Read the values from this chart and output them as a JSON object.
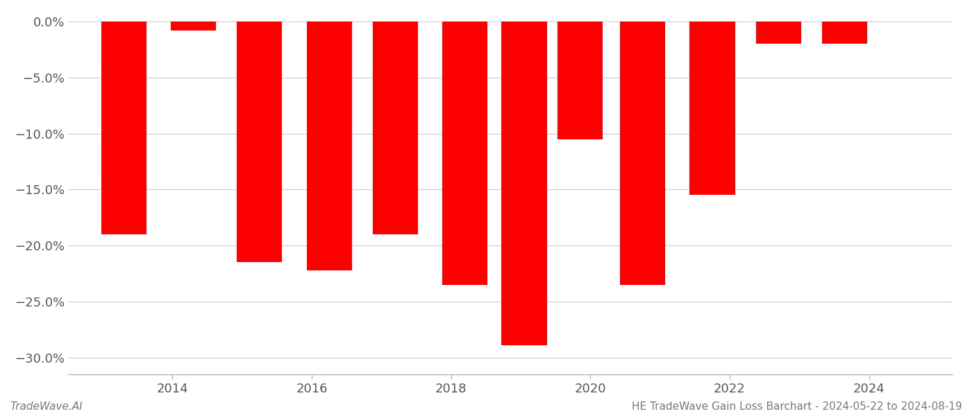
{
  "positions": [
    2013.3,
    2014.3,
    2015.25,
    2016.25,
    2017.2,
    2018.2,
    2019.05,
    2019.85,
    2020.75,
    2021.75,
    2022.7,
    2023.65
  ],
  "values": [
    -0.19,
    -0.008,
    -0.215,
    -0.222,
    -0.19,
    -0.235,
    -0.289,
    -0.105,
    -0.235,
    -0.155,
    -0.02,
    -0.02
  ],
  "bar_color": "#ff0000",
  "background_color": "#ffffff",
  "xlim": [
    2012.5,
    2025.2
  ],
  "ylim": [
    -0.315,
    0.008
  ],
  "yticks": [
    0.0,
    -0.05,
    -0.1,
    -0.15,
    -0.2,
    -0.25,
    -0.3
  ],
  "ytick_labels": [
    "0.0%",
    "−5.0%",
    "−10.0%",
    "−15.0%",
    "−20.0%",
    "−25.0%",
    "−30.0%"
  ],
  "xticks": [
    2014,
    2016,
    2018,
    2020,
    2022,
    2024
  ],
  "footer_left": "TradeWave.AI",
  "footer_right": "HE TradeWave Gain Loss Barchart - 2024-05-22 to 2024-08-19",
  "bar_width": 0.65,
  "grid_color": "#cccccc",
  "tick_label_color": "#555555",
  "spine_color": "#aaaaaa"
}
